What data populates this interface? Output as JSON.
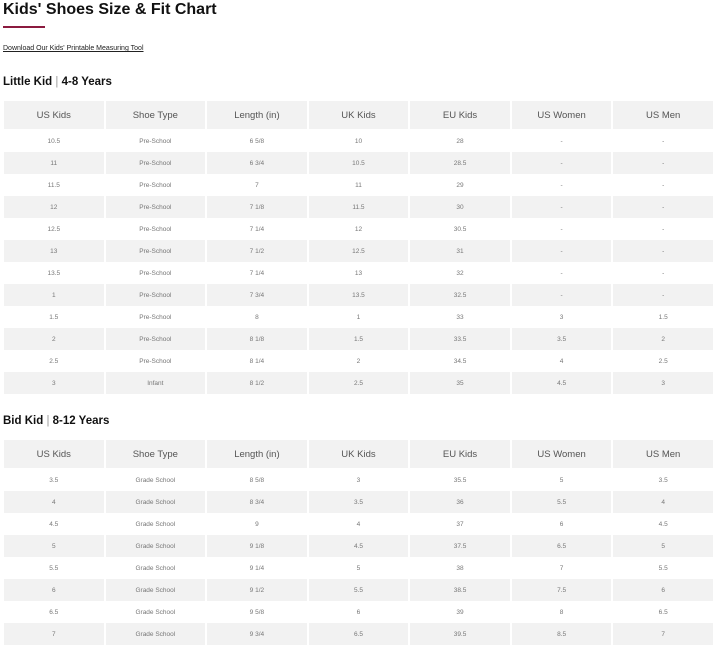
{
  "title": "Kids' Shoes Size & Fit Chart",
  "download_link": "Download Our Kids' Printable Measuring Tool",
  "colors": {
    "accent": "#8b1a3f",
    "row_alt": "#f2f2f2"
  },
  "columns": [
    "US Kids",
    "Shoe Type",
    "Length (in)",
    "UK Kids",
    "EU Kids",
    "US Women",
    "US Men"
  ],
  "sections": [
    {
      "label": "Little Kid",
      "separator": "|",
      "age": "4-8 Years",
      "rows": [
        [
          "10.5",
          "Pre-School",
          "6 5/8",
          "10",
          "28",
          "-",
          "-"
        ],
        [
          "11",
          "Pre-School",
          "6 3/4",
          "10.5",
          "28.5",
          "-",
          "-"
        ],
        [
          "11.5",
          "Pre-School",
          "7",
          "11",
          "29",
          "-",
          "-"
        ],
        [
          "12",
          "Pre-School",
          "7 1/8",
          "11.5",
          "30",
          "-",
          "-"
        ],
        [
          "12.5",
          "Pre-School",
          "7 1/4",
          "12",
          "30.5",
          "-",
          "-"
        ],
        [
          "13",
          "Pre-School",
          "7 1/2",
          "12.5",
          "31",
          "-",
          "-"
        ],
        [
          "13.5",
          "Pre-School",
          "7 1/4",
          "13",
          "32",
          "-",
          "-"
        ],
        [
          "1",
          "Pre-School",
          "7 3/4",
          "13.5",
          "32.5",
          "-",
          "-"
        ],
        [
          "1.5",
          "Pre-School",
          "8",
          "1",
          "33",
          "3",
          "1.5"
        ],
        [
          "2",
          "Pre-School",
          "8 1/8",
          "1.5",
          "33.5",
          "3.5",
          "2"
        ],
        [
          "2.5",
          "Pre-School",
          "8 1/4",
          "2",
          "34.5",
          "4",
          "2.5"
        ],
        [
          "3",
          "Infant",
          "8 1/2",
          "2.5",
          "35",
          "4.5",
          "3"
        ]
      ]
    },
    {
      "label": "Bid Kid",
      "separator": "|",
      "age": "8-12 Years",
      "rows": [
        [
          "3.5",
          "Grade School",
          "8 5/8",
          "3",
          "35.5",
          "5",
          "3.5"
        ],
        [
          "4",
          "Grade School",
          "8 3/4",
          "3.5",
          "36",
          "5.5",
          "4"
        ],
        [
          "4.5",
          "Grade School",
          "9",
          "4",
          "37",
          "6",
          "4.5"
        ],
        [
          "5",
          "Grade School",
          "9 1/8",
          "4.5",
          "37.5",
          "6.5",
          "5"
        ],
        [
          "5.5",
          "Grade School",
          "9 1/4",
          "5",
          "38",
          "7",
          "5.5"
        ],
        [
          "6",
          "Grade School",
          "9 1/2",
          "5.5",
          "38.5",
          "7.5",
          "6"
        ],
        [
          "6.5",
          "Grade School",
          "9 5/8",
          "6",
          "39",
          "8",
          "6.5"
        ],
        [
          "7",
          "Grade School",
          "9 3/4",
          "6.5",
          "39.5",
          "8.5",
          "7"
        ]
      ]
    }
  ]
}
